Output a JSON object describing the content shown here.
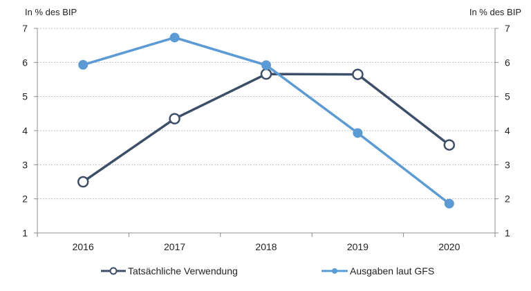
{
  "chart_data": {
    "type": "line",
    "title": "",
    "xlabel": "",
    "ylabel_left": "In % des BIP",
    "ylabel_right": "In % des BIP",
    "categories": [
      "2016",
      "2017",
      "2018",
      "2019",
      "2020"
    ],
    "ylim": [
      1,
      7
    ],
    "yticks": [
      "1",
      "2",
      "3",
      "4",
      "5",
      "6",
      "7"
    ],
    "grid": true,
    "legend_position": "bottom",
    "series": [
      {
        "name": "Tatsächliche Verwendung",
        "values": [
          2.5,
          4.35,
          5.66,
          5.65,
          3.58
        ],
        "color": "#3d4e68",
        "marker": "hollow-circle"
      },
      {
        "name": "Ausgaben laut GFS",
        "values": [
          5.93,
          6.73,
          5.92,
          3.93,
          1.86
        ],
        "color": "#5b9bd5",
        "marker": "filled-circle"
      }
    ]
  }
}
